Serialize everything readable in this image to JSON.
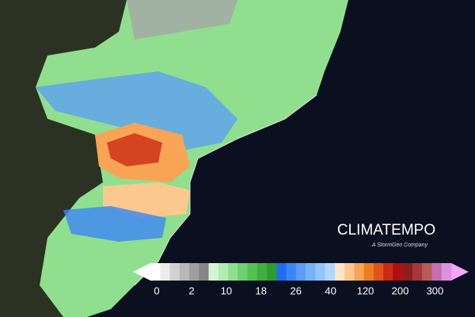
{
  "brand": {
    "name": "CLIMATEMPO",
    "tagline": "A StormGeo Company"
  },
  "legend": {
    "ticks": [
      0,
      2,
      10,
      18,
      26,
      40,
      120,
      200,
      300
    ],
    "colors": [
      "#ffffff",
      "#ececec",
      "#d2d2d2",
      "#b8b8b8",
      "#9e9e9e",
      "#868686",
      "#d4f5d4",
      "#b3ecb3",
      "#8fdf8f",
      "#6fd06f",
      "#55c055",
      "#3fae3f",
      "#2f9a2f",
      "#1e6cf0",
      "#3d85f5",
      "#5a9cf7",
      "#77b1f8",
      "#93c4fa",
      "#b0d6fb",
      "#fde5c8",
      "#fbc98f",
      "#f7a554",
      "#ee7d22",
      "#e0521a",
      "#cc2a14",
      "#b01010",
      "#8e1e1e",
      "#a03a3a",
      "#b85a5a",
      "#c470b0",
      "#e090e0"
    ],
    "end_colors": [
      "#ffffff",
      "#f5a8f5"
    ]
  }
}
